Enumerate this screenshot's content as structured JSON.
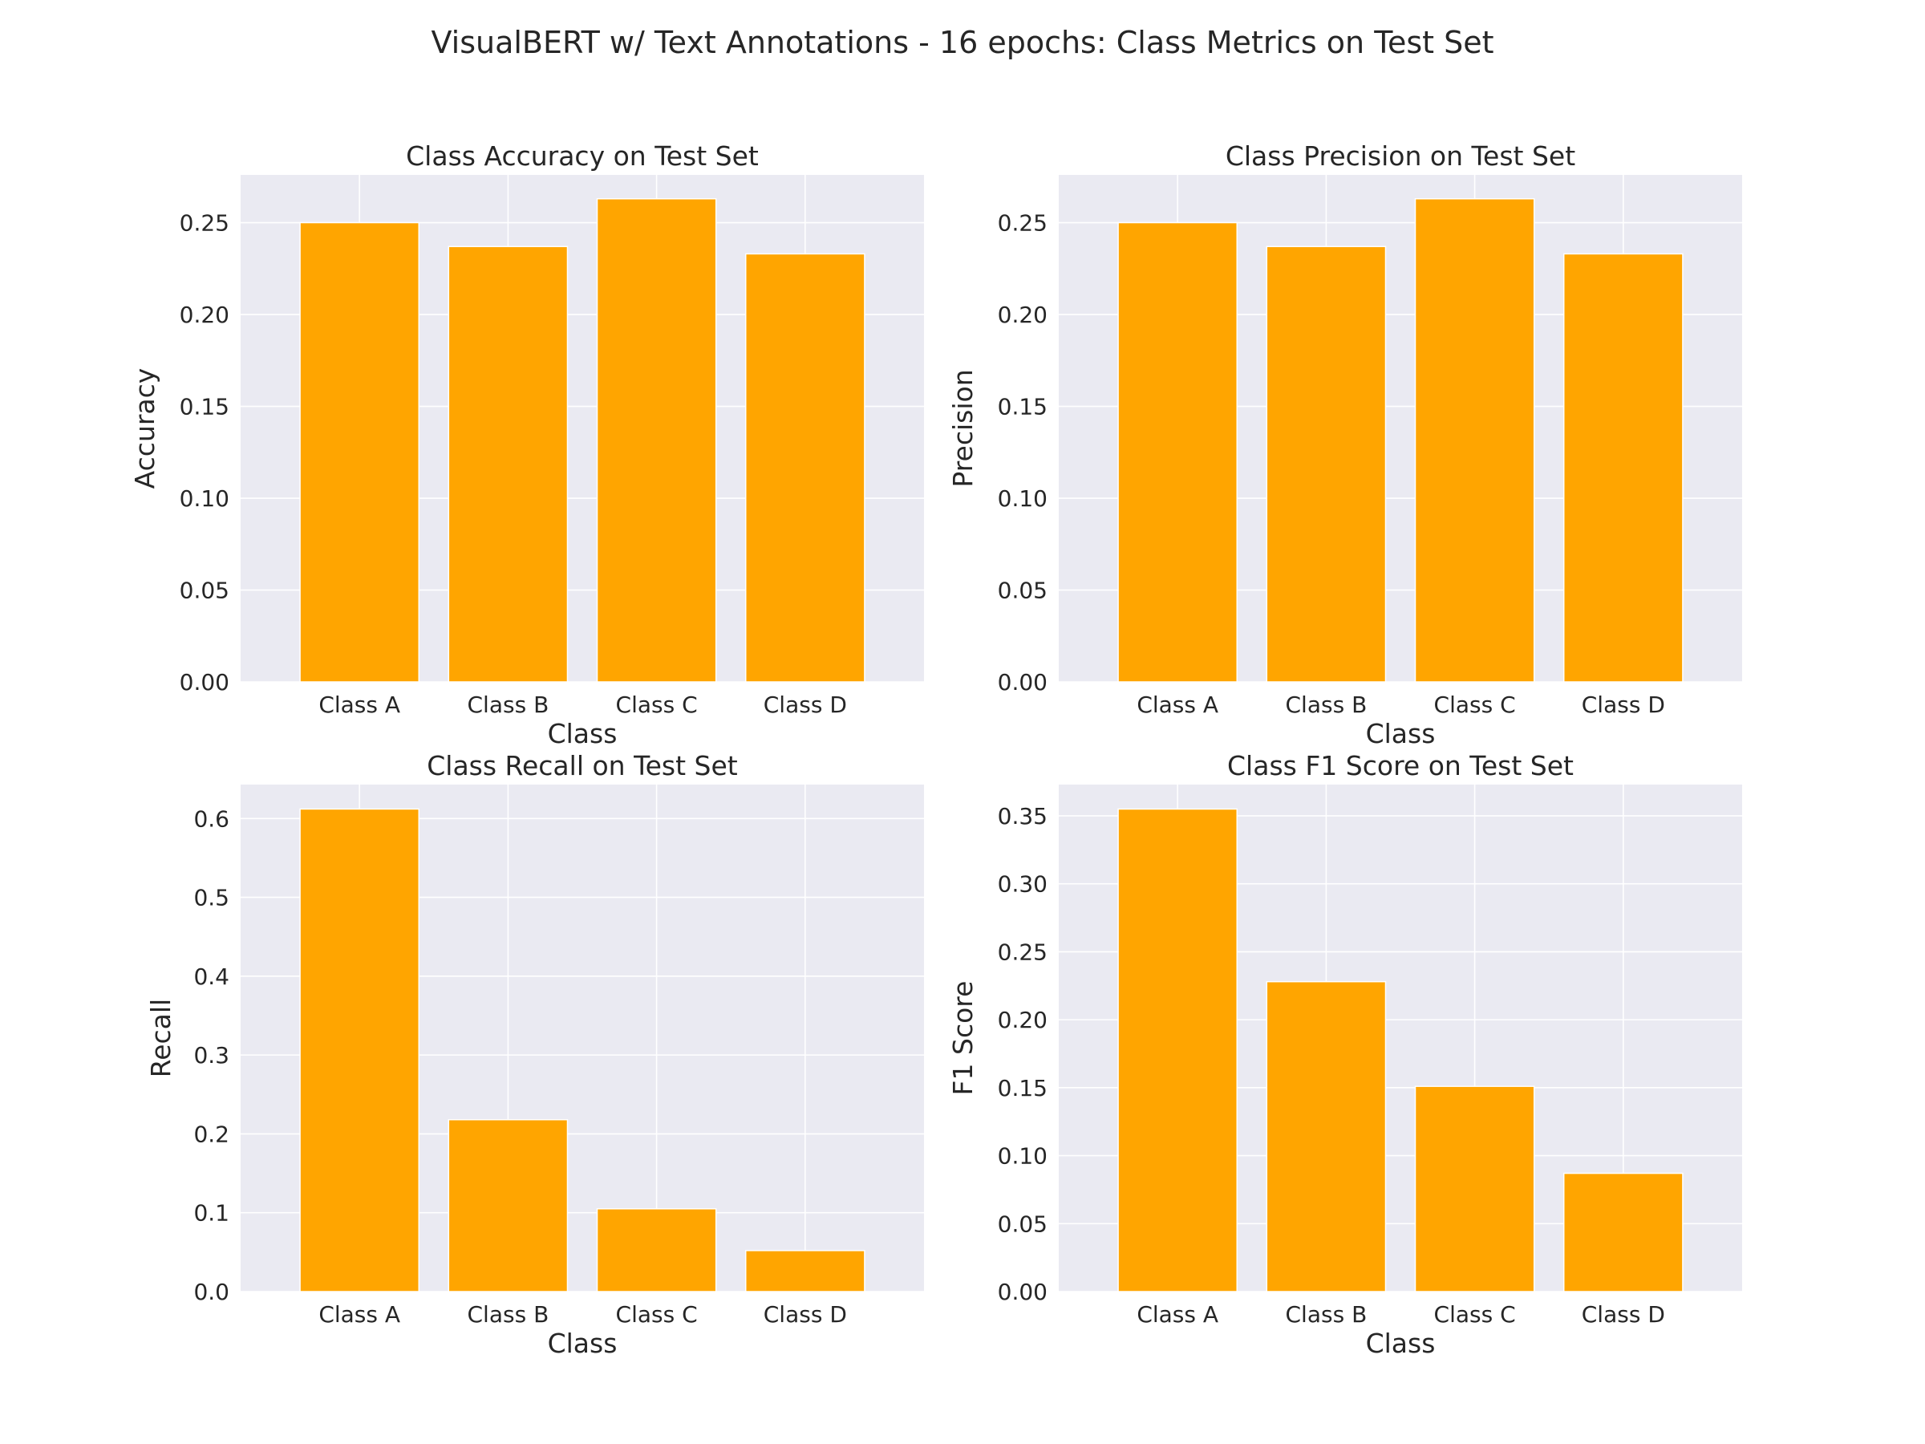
{
  "figure": {
    "title": "VisualBERT w/ Text Annotations - 16 epochs: Class Metrics on Test Set"
  },
  "colors": {
    "bar": "#ffa500",
    "background": "#eaeaf2",
    "grid": "#ffffff",
    "text": "#262626"
  },
  "chart_data": [
    {
      "type": "bar",
      "title": "Class Accuracy on Test Set",
      "xlabel": "Class",
      "ylabel": "Accuracy",
      "categories": [
        "Class A",
        "Class B",
        "Class C",
        "Class D"
      ],
      "values": [
        0.25,
        0.237,
        0.263,
        0.233
      ],
      "ylim": [
        0,
        0.276
      ],
      "yticks": [
        0.0,
        0.05,
        0.1,
        0.15,
        0.2,
        0.25
      ],
      "ytick_labels": [
        "0.00",
        "0.05",
        "0.10",
        "0.15",
        "0.20",
        "0.25"
      ],
      "grid": true
    },
    {
      "type": "bar",
      "title": "Class Precision on Test Set",
      "xlabel": "Class",
      "ylabel": "Precision",
      "categories": [
        "Class A",
        "Class B",
        "Class C",
        "Class D"
      ],
      "values": [
        0.25,
        0.237,
        0.263,
        0.233
      ],
      "ylim": [
        0,
        0.276
      ],
      "yticks": [
        0.0,
        0.05,
        0.1,
        0.15,
        0.2,
        0.25
      ],
      "ytick_labels": [
        "0.00",
        "0.05",
        "0.10",
        "0.15",
        "0.20",
        "0.25"
      ],
      "grid": true
    },
    {
      "type": "bar",
      "title": "Class Recall on Test Set",
      "xlabel": "Class",
      "ylabel": "Recall",
      "categories": [
        "Class A",
        "Class B",
        "Class C",
        "Class D"
      ],
      "values": [
        0.612,
        0.218,
        0.105,
        0.052
      ],
      "ylim": [
        0,
        0.643
      ],
      "yticks": [
        0.0,
        0.1,
        0.2,
        0.3,
        0.4,
        0.5,
        0.6
      ],
      "ytick_labels": [
        "0.0",
        "0.1",
        "0.2",
        "0.3",
        "0.4",
        "0.5",
        "0.6"
      ],
      "grid": true
    },
    {
      "type": "bar",
      "title": "Class F1 Score on Test Set",
      "xlabel": "Class",
      "ylabel": "F1 Score",
      "categories": [
        "Class A",
        "Class B",
        "Class C",
        "Class D"
      ],
      "values": [
        0.355,
        0.228,
        0.151,
        0.087
      ],
      "ylim": [
        0,
        0.373
      ],
      "yticks": [
        0.0,
        0.05,
        0.1,
        0.15,
        0.2,
        0.25,
        0.3,
        0.35
      ],
      "ytick_labels": [
        "0.00",
        "0.05",
        "0.10",
        "0.15",
        "0.20",
        "0.25",
        "0.30",
        "0.35"
      ],
      "grid": true
    }
  ]
}
